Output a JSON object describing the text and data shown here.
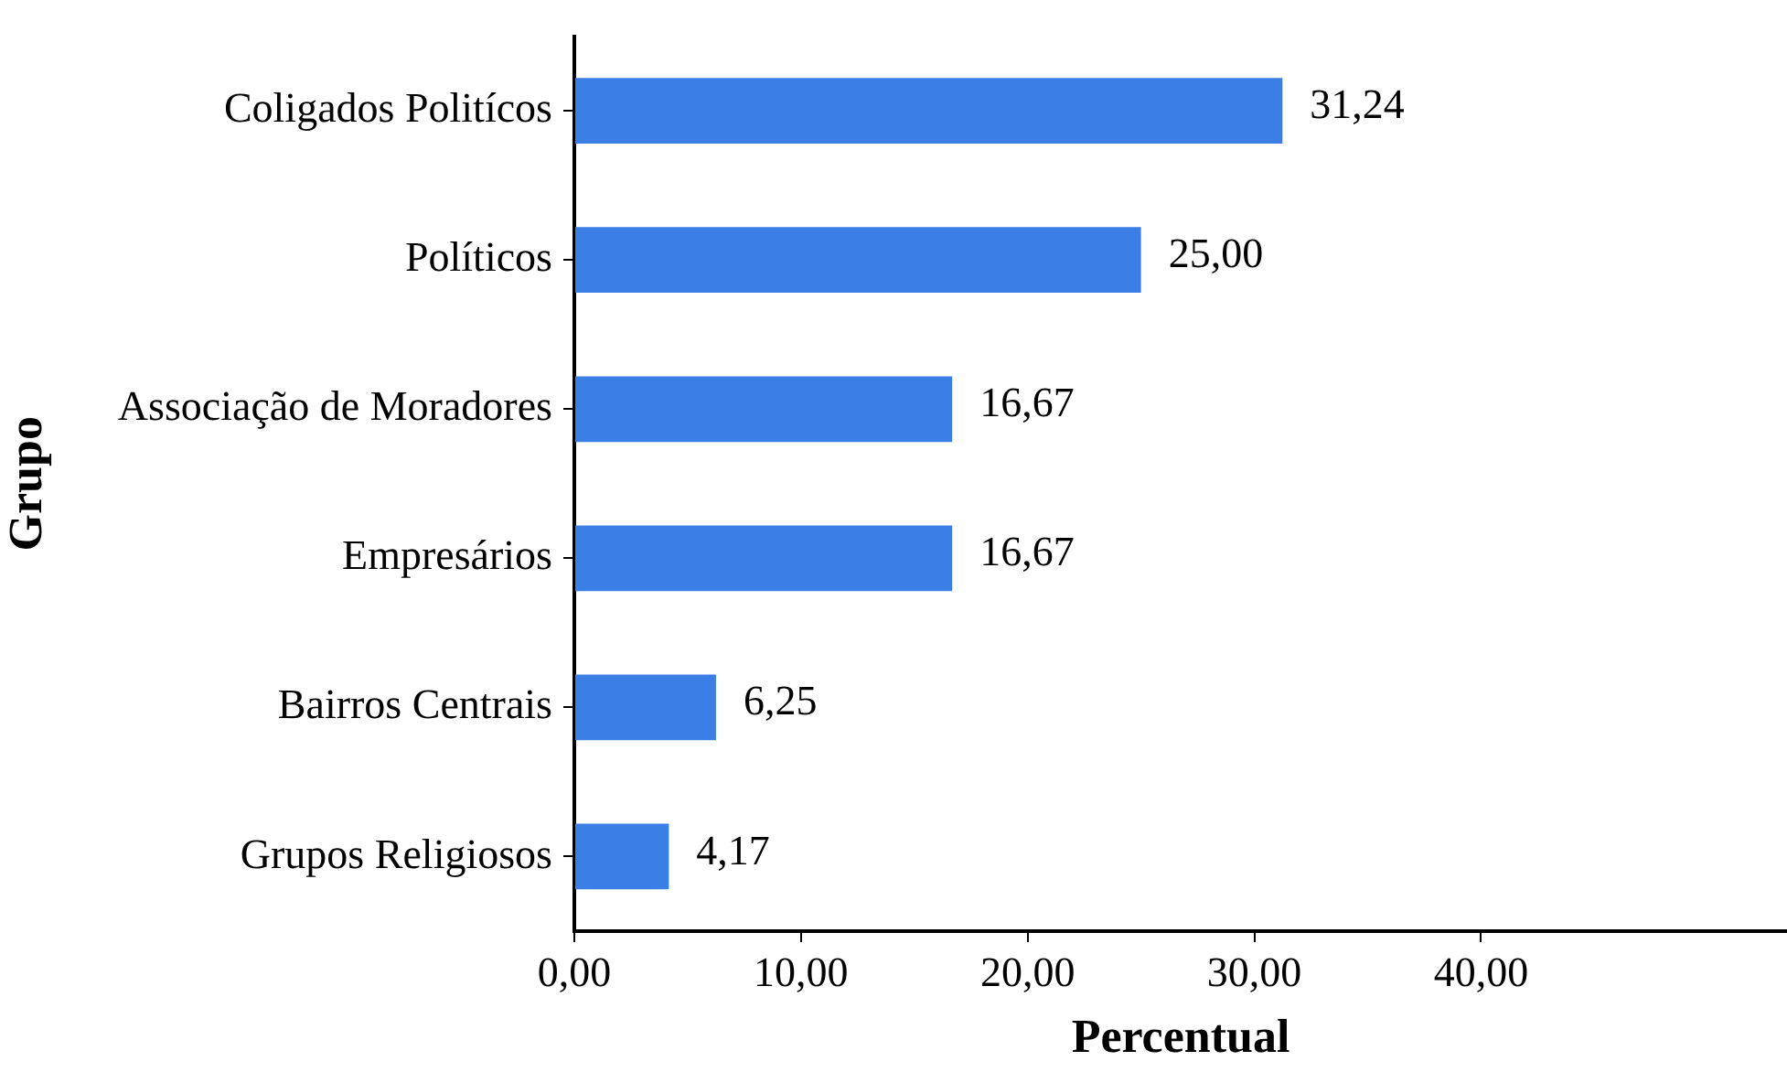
{
  "chart_data": {
    "type": "bar",
    "orientation": "horizontal",
    "ylabel": "Grupo",
    "xlabel": "Percentual",
    "categories": [
      "Coligados Politícos",
      "Políticos",
      "Associação de Moradores",
      "Empresários",
      "Bairros Centrais",
      "Grupos Religiosos"
    ],
    "values": [
      31.24,
      25.0,
      16.67,
      16.67,
      6.25,
      4.17
    ],
    "value_labels": [
      "31,24",
      "25,00",
      "16,67",
      "16,67",
      "6,25",
      "4,17"
    ],
    "color": "#3a7ee6",
    "xlim": [
      0,
      53.5
    ],
    "xticks": [
      {
        "value": 0,
        "label": "0,00"
      },
      {
        "value": 10,
        "label": "10,00"
      },
      {
        "value": 20,
        "label": "20,00"
      },
      {
        "value": 30,
        "label": "30,00"
      },
      {
        "value": 40,
        "label": "40,00"
      }
    ],
    "grid": false,
    "legend": false
  }
}
